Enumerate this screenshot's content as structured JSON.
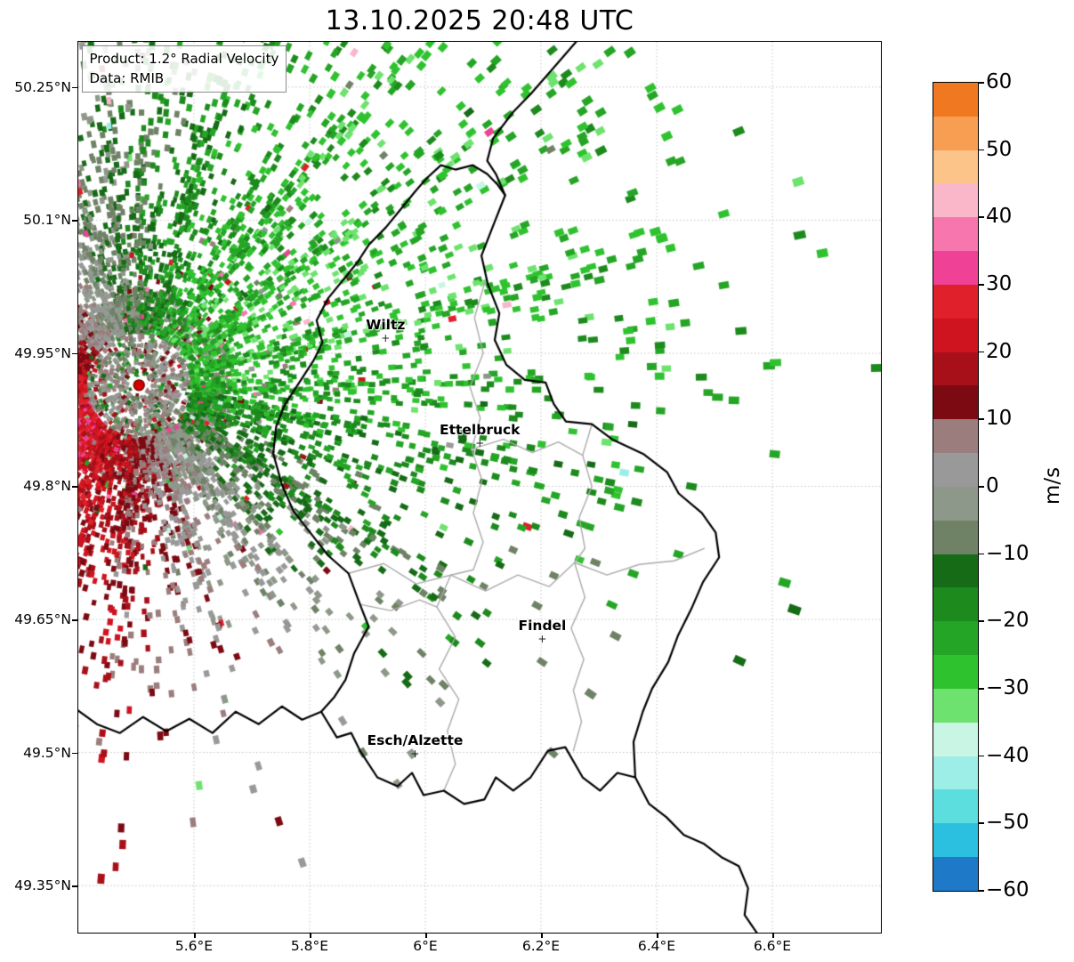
{
  "title": "13.10.2025 20:48 UTC",
  "info_box": {
    "line1": "Product: 1.2° Radial Velocity",
    "line2": "Data: RMIB"
  },
  "axes": {
    "x_ticks": [
      {
        "label": "5.6°E",
        "lon": 5.6
      },
      {
        "label": "5.8°E",
        "lon": 5.8
      },
      {
        "label": "6°E",
        "lon": 6.0
      },
      {
        "label": "6.2°E",
        "lon": 6.2
      },
      {
        "label": "6.4°E",
        "lon": 6.4
      },
      {
        "label": "6.6°E",
        "lon": 6.6
      }
    ],
    "y_ticks": [
      {
        "label": "50.25°N",
        "lat": 50.25
      },
      {
        "label": "50.1°N",
        "lat": 50.1
      },
      {
        "label": "49.95°N",
        "lat": 49.95
      },
      {
        "label": "49.8°N",
        "lat": 49.8
      },
      {
        "label": "49.65°N",
        "lat": 49.65
      },
      {
        "label": "49.5°N",
        "lat": 49.5
      },
      {
        "label": "49.35°N",
        "lat": 49.35
      }
    ]
  },
  "colorbar": {
    "unit": "m/s",
    "min": -60,
    "max": 60,
    "band_step": 5,
    "tick_labels": [
      {
        "label": "60",
        "value": 60
      },
      {
        "label": "50",
        "value": 50
      },
      {
        "label": "40",
        "value": 40
      },
      {
        "label": "30",
        "value": 30
      },
      {
        "label": "20",
        "value": 20
      },
      {
        "label": "10",
        "value": 10
      },
      {
        "label": "0",
        "value": 0
      },
      {
        "label": "−10",
        "value": -10
      },
      {
        "label": "−20",
        "value": -20
      },
      {
        "label": "−30",
        "value": -30
      },
      {
        "label": "−40",
        "value": -40
      },
      {
        "label": "−50",
        "value": -50
      },
      {
        "label": "−60",
        "value": -60
      }
    ],
    "colors_top_to_bottom": [
      "#f07820",
      "#f89e52",
      "#fcc489",
      "#f9b7c9",
      "#f776ae",
      "#ef4196",
      "#e0202a",
      "#cf1420",
      "#a81019",
      "#7c0a12",
      "#9b7d7d",
      "#999999",
      "#8e988a",
      "#6f8266",
      "#166b16",
      "#1d8a1d",
      "#25a525",
      "#2fc22f",
      "#6ee26e",
      "#c9f6e4",
      "#9deee6",
      "#5cdede",
      "#2cc0e0",
      "#1e7ac8"
    ]
  },
  "map": {
    "radar_site": {
      "name": "radar",
      "lon": 5.505,
      "lat": 49.914,
      "marker_color": "#d40000"
    },
    "cities": [
      {
        "name": "Wiltz",
        "lon": 5.932,
        "lat": 49.966
      },
      {
        "name": "Ettelbruck",
        "lon": 6.095,
        "lat": 49.848
      },
      {
        "name": "Findel",
        "lon": 6.203,
        "lat": 49.627
      },
      {
        "name": "Esch/Alzette",
        "lon": 5.983,
        "lat": 49.498
      }
    ],
    "border_color": "#000000",
    "district_border_color": "#aaaaaa",
    "borders_black": [
      [
        [
          6.262,
          50.302
        ],
        [
          6.222,
          50.272
        ],
        [
          6.182,
          50.242
        ],
        [
          6.152,
          50.222
        ],
        [
          6.117,
          50.192
        ],
        [
          6.107,
          50.167
        ],
        [
          6.122,
          50.152
        ],
        [
          6.138,
          50.128
        ]
      ],
      [
        [
          6.138,
          50.128
        ],
        [
          6.118,
          50.095
        ],
        [
          6.097,
          50.06
        ],
        [
          6.108,
          50.028
        ],
        [
          6.128,
          49.995
        ],
        [
          6.12,
          49.965
        ],
        [
          6.14,
          49.937
        ],
        [
          6.172,
          49.92
        ],
        [
          6.208,
          49.917
        ],
        [
          6.222,
          49.893
        ],
        [
          6.243,
          49.873
        ],
        [
          6.288,
          49.87
        ],
        [
          6.323,
          49.853
        ],
        [
          6.378,
          49.836
        ],
        [
          6.418,
          49.816
        ],
        [
          6.438,
          49.792
        ],
        [
          6.478,
          49.77
        ],
        [
          6.502,
          49.748
        ],
        [
          6.508,
          49.72
        ],
        [
          6.48,
          49.692
        ],
        [
          6.46,
          49.662
        ],
        [
          6.437,
          49.632
        ],
        [
          6.42,
          49.602
        ],
        [
          6.392,
          49.572
        ],
        [
          6.376,
          49.546
        ],
        [
          6.36,
          49.512
        ],
        [
          6.363,
          49.472
        ],
        [
          6.332,
          49.477
        ],
        [
          6.302,
          49.457
        ],
        [
          6.272,
          49.472
        ],
        [
          6.242,
          49.506
        ],
        [
          6.212,
          49.502
        ],
        [
          6.182,
          49.472
        ],
        [
          6.152,
          49.457
        ],
        [
          6.122,
          49.472
        ],
        [
          6.102,
          49.447
        ],
        [
          6.067,
          49.442
        ],
        [
          6.032,
          49.457
        ],
        [
          5.997,
          49.452
        ],
        [
          5.977,
          49.477
        ],
        [
          5.952,
          49.462
        ],
        [
          5.917,
          49.472
        ],
        [
          5.887,
          49.502
        ],
        [
          5.872,
          49.522
        ],
        [
          5.847,
          49.517
        ],
        [
          5.82,
          49.546
        ],
        [
          5.842,
          49.562
        ],
        [
          5.862,
          49.582
        ],
        [
          5.877,
          49.612
        ],
        [
          5.902,
          49.642
        ],
        [
          5.887,
          49.667
        ],
        [
          5.867,
          49.702
        ],
        [
          5.832,
          49.722
        ],
        [
          5.802,
          49.747
        ],
        [
          5.772,
          49.772
        ],
        [
          5.752,
          49.802
        ],
        [
          5.737,
          49.837
        ],
        [
          5.742,
          49.867
        ],
        [
          5.757,
          49.892
        ],
        [
          5.782,
          49.917
        ],
        [
          5.807,
          49.942
        ],
        [
          5.822,
          49.962
        ],
        [
          5.812,
          49.987
        ],
        [
          5.832,
          50.012
        ],
        [
          5.857,
          50.032
        ],
        [
          5.882,
          50.052
        ],
        [
          5.902,
          50.072
        ],
        [
          5.932,
          50.092
        ],
        [
          5.957,
          50.112
        ],
        [
          5.982,
          50.132
        ],
        [
          6.002,
          50.147
        ],
        [
          6.027,
          50.162
        ],
        [
          6.052,
          50.157
        ],
        [
          6.082,
          50.162
        ],
        [
          6.107,
          50.152
        ],
        [
          6.125,
          50.14
        ],
        [
          6.138,
          50.128
        ]
      ],
      [
        [
          5.398,
          49.548
        ],
        [
          5.432,
          49.532
        ],
        [
          5.472,
          49.522
        ],
        [
          5.512,
          49.54
        ],
        [
          5.552,
          49.524
        ],
        [
          5.592,
          49.538
        ],
        [
          5.632,
          49.522
        ],
        [
          5.672,
          49.546
        ],
        [
          5.712,
          49.532
        ],
        [
          5.752,
          49.552
        ],
        [
          5.787,
          49.537
        ],
        [
          5.82,
          49.546
        ]
      ],
      [
        [
          6.363,
          49.472
        ],
        [
          6.387,
          49.442
        ],
        [
          6.417,
          49.427
        ],
        [
          6.447,
          49.407
        ],
        [
          6.482,
          49.397
        ],
        [
          6.512,
          49.382
        ],
        [
          6.542,
          49.372
        ],
        [
          6.558,
          49.347
        ],
        [
          6.552,
          49.317
        ],
        [
          6.575,
          49.295
        ]
      ]
    ],
    "borders_gray": [
      [
        [
          5.867,
          49.702
        ],
        [
          5.928,
          49.713
        ],
        [
          5.984,
          49.69
        ],
        [
          6.044,
          49.7
        ],
        [
          6.104,
          49.682
        ],
        [
          6.16,
          49.7
        ],
        [
          6.214,
          49.687
        ],
        [
          6.258,
          49.714
        ],
        [
          6.314,
          49.7
        ],
        [
          6.37,
          49.712
        ],
        [
          6.43,
          49.716
        ],
        [
          6.482,
          49.73
        ]
      ],
      [
        [
          6.103,
          50.03
        ],
        [
          6.085,
          49.99
        ],
        [
          6.1,
          49.95
        ],
        [
          6.077,
          49.912
        ],
        [
          6.095,
          49.877
        ],
        [
          6.08,
          49.842
        ],
        [
          6.098,
          49.807
        ],
        [
          6.083,
          49.77
        ],
        [
          6.1,
          49.737
        ],
        [
          6.083,
          49.706
        ],
        [
          6.044,
          49.7
        ]
      ],
      [
        [
          6.288,
          49.87
        ],
        [
          6.272,
          49.835
        ],
        [
          6.288,
          49.8
        ],
        [
          6.266,
          49.765
        ],
        [
          6.276,
          49.73
        ],
        [
          6.258,
          49.714
        ],
        [
          6.276,
          49.675
        ],
        [
          6.252,
          49.64
        ],
        [
          6.274,
          49.605
        ],
        [
          6.256,
          49.57
        ],
        [
          6.27,
          49.535
        ],
        [
          6.256,
          49.502
        ]
      ],
      [
        [
          6.044,
          49.7
        ],
        [
          6.02,
          49.664
        ],
        [
          6.052,
          49.63
        ],
        [
          6.024,
          49.594
        ],
        [
          6.058,
          49.56
        ],
        [
          6.038,
          49.524
        ],
        [
          6.052,
          49.487
        ],
        [
          6.032,
          49.457
        ]
      ],
      [
        [
          6.08,
          49.842
        ],
        [
          6.135,
          49.853
        ],
        [
          6.185,
          49.838
        ],
        [
          6.23,
          49.85
        ],
        [
          6.272,
          49.835
        ]
      ],
      [
        [
          5.887,
          49.667
        ],
        [
          5.94,
          49.66
        ],
        [
          5.99,
          49.672
        ],
        [
          6.02,
          49.664
        ]
      ]
    ]
  },
  "chart_data": {
    "type": "heatmap",
    "title": "13.10.2025 20:48 UTC",
    "product": "1.2° Radial Velocity",
    "data_source": "RMIB",
    "units": "m/s",
    "value_range": [
      -60,
      60
    ],
    "xlabel_ticks": [
      "5.6°E",
      "5.8°E",
      "6°E",
      "6.2°E",
      "6.4°E",
      "6.6°E"
    ],
    "ylabel_ticks": [
      "50.25°N",
      "50.1°N",
      "49.95°N",
      "49.8°N",
      "49.65°N",
      "49.5°N",
      "49.35°N"
    ],
    "legend_position": "right-colorbar",
    "radar_center": {
      "lon": 5.505,
      "lat": 49.914
    },
    "field_summary": {
      "inbound_sector": "N through E of radar: radial velocities -10 to -30 m/s (greens), dense returns",
      "outbound_sector": "W/SW of radar: +5 to +25 m/s (dark reds) mixed with near-zero gray clutter",
      "clutter_core": "near-zero gray/dark mixed returns within ~12 km ring around radar site",
      "coverage": "dense NE quadrant to map edge, sparse scattered cells S and far E, empty SE corner",
      "outliers": "isolated pink (+30..+45), cyan (-40..-55) and orange cells scattered"
    },
    "render_params": {
      "seed": 7,
      "core_cells": 3200,
      "field_cells": 18000,
      "mean_wind_ms": 26,
      "wind_toward_screen_angle_rad": -0.5
    }
  }
}
